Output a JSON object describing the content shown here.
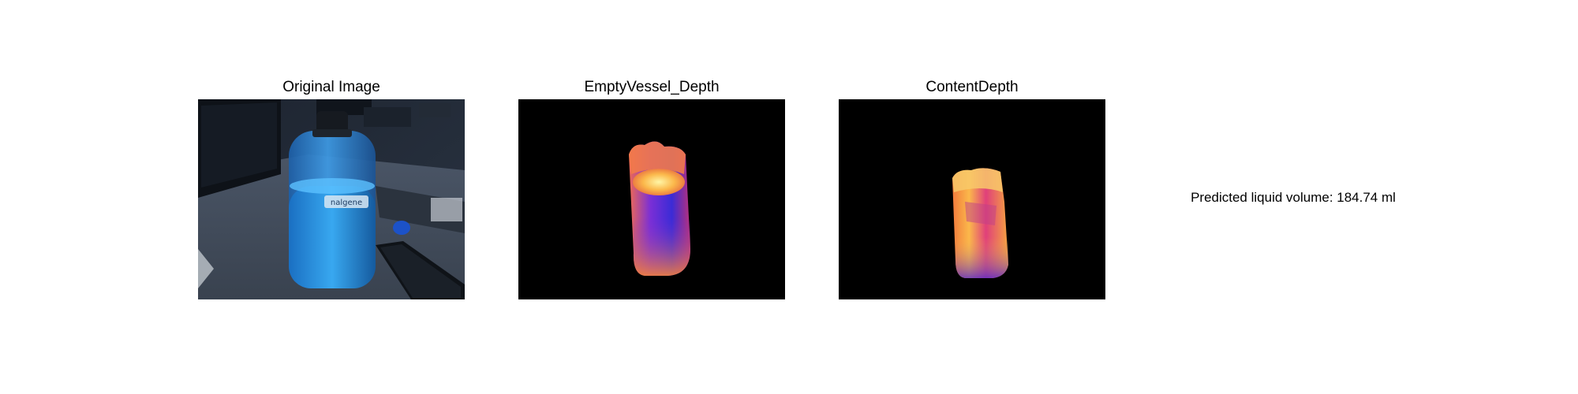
{
  "panels": [
    {
      "title": "Original Image",
      "image": "photo of a blue Nalgene water bottle on a desk"
    },
    {
      "title": "EmptyVessel_Depth",
      "image": "depth map of empty vessel, plasma colormap"
    },
    {
      "title": "ContentDepth",
      "image": "depth map of vessel contents, plasma colormap"
    }
  ],
  "bottle_label": "nalgene",
  "result": {
    "text": "Predicted liquid volume: 184.74 ml"
  },
  "colors": {
    "background": "#ffffff",
    "depth_background": "#000000",
    "plasma_low": "#3b2bd6",
    "plasma_mid": "#e0407a",
    "plasma_high": "#fdf07a",
    "bottle_blue": "#2f7fd1"
  }
}
